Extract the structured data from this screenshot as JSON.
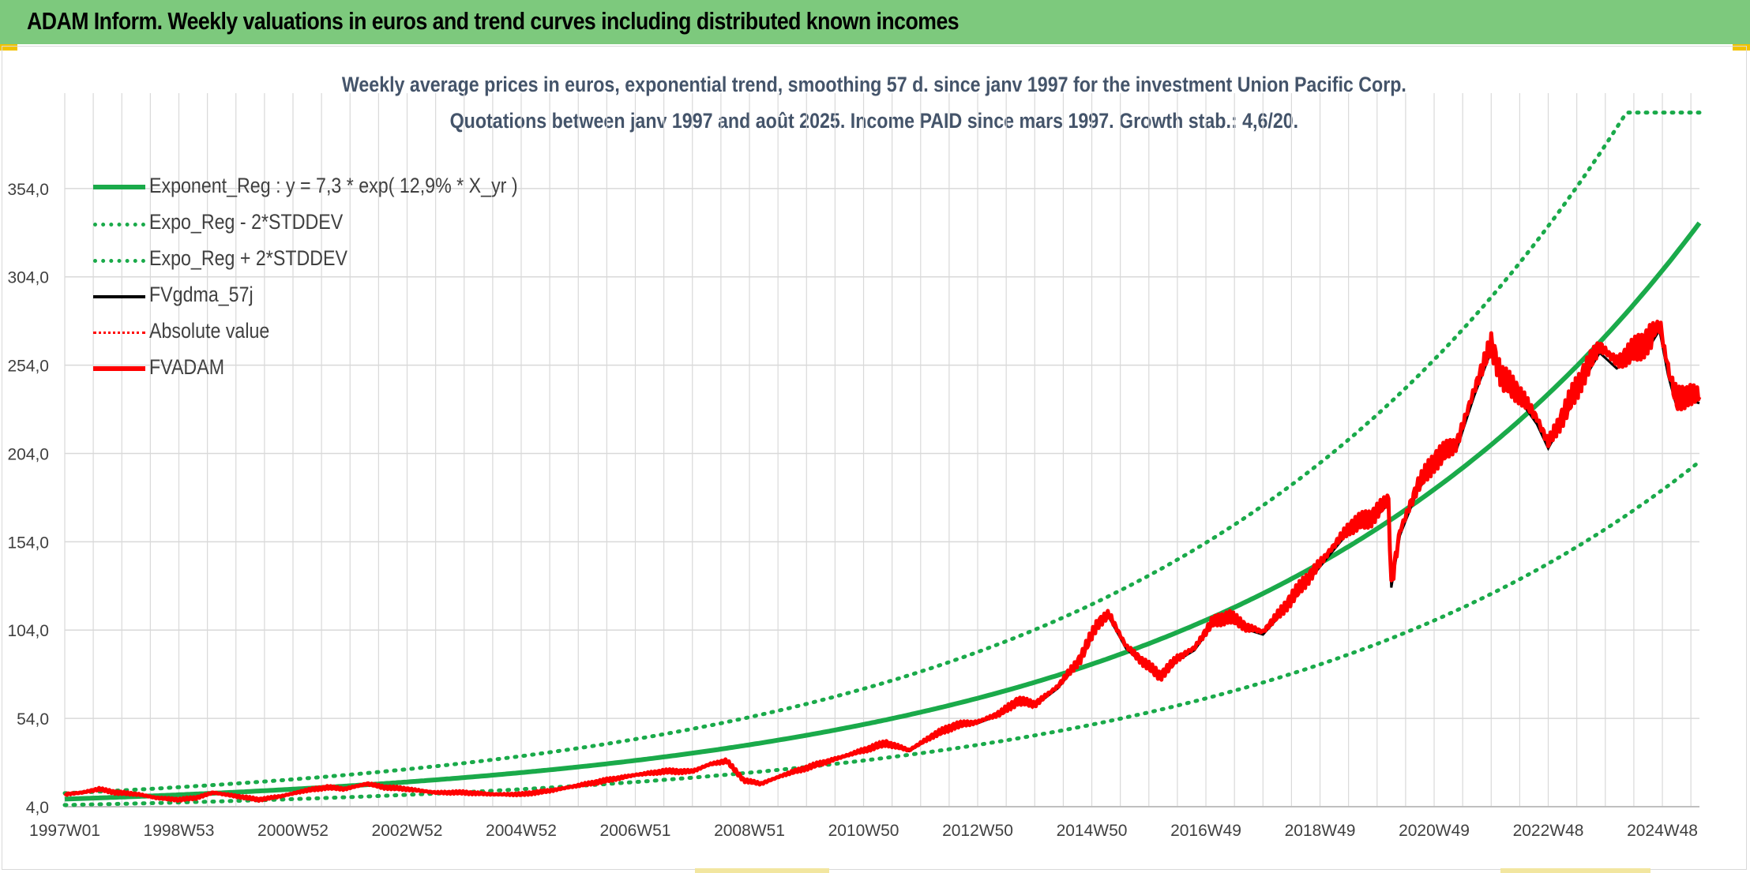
{
  "header": {
    "title": "ADAM Inform. Weekly valuations in euros and trend curves including distributed known incomes"
  },
  "colors": {
    "banner": "#7dc97d",
    "trend": "#1aaa4a",
    "price": "#ff0000",
    "gdma": "#000000",
    "grid": "#d9d9d9",
    "axis_text": "#404040",
    "subtitle": "#44546a"
  },
  "chart_data": {
    "type": "line",
    "title": "Weekly average prices in euros, exponential trend, smoothing 57 d. since janv 1997 for the investment Union Pacific Corp.",
    "subtitle": "Quotations between janv 1997 and août 2025. Income PAID since mars 1997. Growth stab.: 4,6/20.",
    "xlabel": "",
    "ylabel": "",
    "x_ticks": [
      "1997W01",
      "1998W53",
      "2000W52",
      "2002W52",
      "2004W52",
      "2006W51",
      "2008W51",
      "2010W50",
      "2012W50",
      "2014W50",
      "2016W49",
      "2018W49",
      "2020W49",
      "2022W48",
      "2024W48"
    ],
    "x_tick_years": [
      1997.0,
      1999.0,
      2001.0,
      2003.0,
      2005.0,
      2007.0,
      2009.0,
      2011.0,
      2013.0,
      2015.0,
      2017.0,
      2019.0,
      2021.0,
      2023.0,
      2025.0
    ],
    "xlim": [
      1997.0,
      2025.65
    ],
    "y_ticks": [
      "4,0",
      "54,0",
      "104,0",
      "154,0",
      "204,0",
      "254,0",
      "304,0",
      "354,0"
    ],
    "ylim": [
      4,
      408
    ],
    "grid": true,
    "legend_position": "top-left",
    "series": [
      {
        "name": "Exponent_Reg : y = 7,3 * exp( 12,9% *  X_yr )",
        "style": "solid-thick",
        "color": "#1aaa4a",
        "a": 7.3,
        "rate": 0.129,
        "factor": 1.0
      },
      {
        "name": "Expo_Reg - 2*STDDEV",
        "style": "dotted",
        "color": "#1aaa4a",
        "a": 7.3,
        "rate": 0.129,
        "factor": 0.596
      },
      {
        "name": "Expo_Reg + 2*STDDEV",
        "style": "dotted",
        "color": "#1aaa4a",
        "a": 7.3,
        "rate": 0.129,
        "factor": 1.4,
        "cap": 397
      },
      {
        "name": "FVgdma_57j",
        "style": "solid",
        "color": "#000000"
      },
      {
        "name": "Absolute value",
        "style": "dotted",
        "color": "#ff0000"
      },
      {
        "name": "FVADAM",
        "style": "solid-thick",
        "color": "#ff0000"
      }
    ],
    "price_points": [
      [
        1997.0,
        11
      ],
      [
        1997.3,
        12
      ],
      [
        1997.6,
        14
      ],
      [
        1997.9,
        12
      ],
      [
        1998.3,
        11
      ],
      [
        1998.6,
        9
      ],
      [
        1999.0,
        8
      ],
      [
        1999.3,
        9
      ],
      [
        1999.6,
        12
      ],
      [
        2000.0,
        10
      ],
      [
        2000.4,
        8
      ],
      [
        2000.8,
        10
      ],
      [
        2001.2,
        13
      ],
      [
        2001.6,
        15
      ],
      [
        2001.9,
        14
      ],
      [
        2002.3,
        17
      ],
      [
        2002.6,
        15
      ],
      [
        2003.0,
        14
      ],
      [
        2003.5,
        12
      ],
      [
        2004.0,
        12
      ],
      [
        2004.5,
        11
      ],
      [
        2005.0,
        11
      ],
      [
        2005.5,
        13
      ],
      [
        2006.0,
        16
      ],
      [
        2006.5,
        19
      ],
      [
        2007.0,
        22
      ],
      [
        2007.5,
        24
      ],
      [
        2008.0,
        24
      ],
      [
        2008.3,
        28
      ],
      [
        2008.6,
        30
      ],
      [
        2008.9,
        19
      ],
      [
        2009.2,
        17
      ],
      [
        2009.6,
        22
      ],
      [
        2010.0,
        26
      ],
      [
        2010.5,
        31
      ],
      [
        2010.9,
        35
      ],
      [
        2011.4,
        40
      ],
      [
        2011.8,
        36
      ],
      [
        2012.2,
        44
      ],
      [
        2012.6,
        50
      ],
      [
        2013.0,
        52
      ],
      [
        2013.4,
        57
      ],
      [
        2013.7,
        64
      ],
      [
        2014.0,
        62
      ],
      [
        2014.4,
        72
      ],
      [
        2014.8,
        88
      ],
      [
        2015.1,
        108
      ],
      [
        2015.3,
        113
      ],
      [
        2015.6,
        95
      ],
      [
        2015.9,
        86
      ],
      [
        2016.2,
        78
      ],
      [
        2016.5,
        88
      ],
      [
        2016.8,
        94
      ],
      [
        2017.1,
        108
      ],
      [
        2017.4,
        112
      ],
      [
        2017.7,
        106
      ],
      [
        2018.0,
        103
      ],
      [
        2018.3,
        114
      ],
      [
        2018.6,
        126
      ],
      [
        2018.9,
        138
      ],
      [
        2019.2,
        150
      ],
      [
        2019.5,
        162
      ],
      [
        2019.9,
        168
      ],
      [
        2020.2,
        178
      ],
      [
        2020.25,
        130
      ],
      [
        2020.4,
        160
      ],
      [
        2020.7,
        185
      ],
      [
        2021.0,
        200
      ],
      [
        2021.4,
        210
      ],
      [
        2021.7,
        240
      ],
      [
        2022.0,
        266
      ],
      [
        2022.2,
        246
      ],
      [
        2022.5,
        238
      ],
      [
        2022.8,
        224
      ],
      [
        2023.0,
        210
      ],
      [
        2023.3,
        228
      ],
      [
        2023.6,
        248
      ],
      [
        2023.9,
        265
      ],
      [
        2024.2,
        256
      ],
      [
        2024.5,
        262
      ],
      [
        2024.8,
        270
      ],
      [
        2024.95,
        278
      ],
      [
        2025.1,
        252
      ],
      [
        2025.25,
        234
      ],
      [
        2025.45,
        238
      ],
      [
        2025.65,
        236
      ]
    ]
  }
}
